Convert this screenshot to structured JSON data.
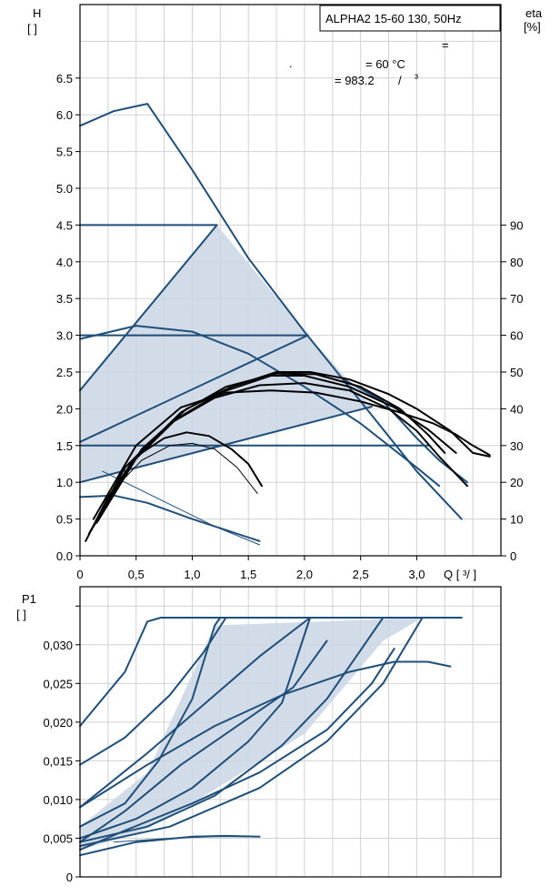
{
  "chart_data": [
    {
      "type": "line",
      "model_box": "ALPHA2 15-60 130, 50Hz",
      "notes": [
        "=",
        ".",
        "= 60 °C",
        "= 983.2",
        "/",
        "³"
      ],
      "y_label": "H",
      "y_unit": "[ ]",
      "y2_label": "eta",
      "y2_unit": "[%]",
      "x_label": "Q [ ³/ ]",
      "xlim": [
        0,
        3.75
      ],
      "ylim": [
        0,
        7.5
      ],
      "y2lim": [
        0,
        150
      ],
      "x_ticks": [
        "0",
        "0,5",
        "1,0",
        "1,5",
        "2,0",
        "2,5",
        "3,0"
      ],
      "x_tick_values": [
        0,
        0.5,
        1.0,
        1.5,
        2.0,
        2.5,
        3.0
      ],
      "y_ticks": [
        "0.0",
        "0.5",
        "1.0",
        "1.5",
        "2.0",
        "2.5",
        "3.0",
        "3.5",
        "4.0",
        "4.5",
        "5.0",
        "5.5",
        "6.0",
        "6.5"
      ],
      "y_tick_values": [
        0,
        0.5,
        1.0,
        1.5,
        2.0,
        2.5,
        3.0,
        3.5,
        4.0,
        4.5,
        5.0,
        5.5,
        6.0,
        6.5
      ],
      "y2_ticks": [
        "0",
        "10",
        "20",
        "30",
        "40",
        "50",
        "60",
        "70",
        "80",
        "90"
      ],
      "y2_tick_values": [
        0,
        10,
        20,
        30,
        40,
        50,
        60,
        70,
        80,
        90
      ],
      "grid": true,
      "area_polygon": [
        [
          0,
          1.0
        ],
        [
          0,
          2.25
        ],
        [
          1.22,
          4.5
        ],
        [
          2.03,
          3.0
        ],
        [
          2.6,
          2.03
        ],
        [
          0,
          1.0
        ]
      ],
      "series": [
        {
          "color": "#1f4e79",
          "width": 2,
          "points": [
            [
              0,
              5.85
            ],
            [
              0.3,
              6.05
            ],
            [
              0.6,
              6.15
            ],
            [
              1.0,
              5.25
            ],
            [
              1.5,
              4.05
            ],
            [
              2.0,
              3.05
            ],
            [
              2.5,
              2.1
            ],
            [
              3.0,
              1.15
            ],
            [
              3.4,
              0.5
            ]
          ]
        },
        {
          "color": "#1f4e79",
          "width": 2,
          "points": [
            [
              0,
              4.5
            ],
            [
              1.22,
              4.5
            ]
          ]
        },
        {
          "color": "#1f4e79",
          "width": 2,
          "points": [
            [
              0,
              3.0
            ],
            [
              2.03,
              3.0
            ]
          ]
        },
        {
          "color": "#1f4e79",
          "width": 2,
          "points": [
            [
              0,
              1.5
            ],
            [
              3.1,
              1.5
            ]
          ]
        },
        {
          "color": "#1f4e79",
          "width": 2,
          "points": [
            [
              0,
              2.25
            ],
            [
              1.22,
              4.5
            ]
          ]
        },
        {
          "color": "#1f4e79",
          "width": 2,
          "points": [
            [
              0,
              1.55
            ],
            [
              2.03,
              3.0
            ]
          ]
        },
        {
          "color": "#1f4e79",
          "width": 2,
          "points": [
            [
              0,
              1.0
            ],
            [
              2.6,
              2.03
            ]
          ]
        },
        {
          "color": "#1f4e79",
          "width": 2,
          "points": [
            [
              0,
              2.95
            ],
            [
              0.5,
              3.13
            ],
            [
              1.0,
              3.05
            ],
            [
              1.5,
              2.75
            ],
            [
              2.0,
              2.3
            ],
            [
              2.5,
              1.8
            ],
            [
              3.0,
              1.2
            ],
            [
              3.2,
              0.95
            ]
          ]
        },
        {
          "color": "#1f4e79",
          "width": 2,
          "points": [
            [
              0,
              0.8
            ],
            [
              0.3,
              0.82
            ],
            [
              0.6,
              0.72
            ],
            [
              1.0,
              0.5
            ],
            [
              1.3,
              0.35
            ],
            [
              1.6,
              0.2
            ]
          ]
        },
        {
          "color": "#1f4e79",
          "width": 1,
          "points": [
            [
              0.2,
              1.15
            ],
            [
              0.8,
              0.7
            ],
            [
              1.2,
              0.4
            ],
            [
              1.6,
              0.15
            ]
          ]
        },
        {
          "color": "#1f4e79",
          "width": 2,
          "points": [
            [
              2.35,
              2.4
            ],
            [
              2.7,
              2.1
            ],
            [
              3.0,
              1.6
            ],
            [
              3.2,
              1.3
            ],
            [
              3.45,
              1.0
            ]
          ]
        },
        {
          "color": "#000000",
          "width": 2,
          "points": [
            [
              0.05,
              0.2
            ],
            [
              0.25,
              0.8
            ],
            [
              0.5,
              1.35
            ],
            [
              0.75,
              1.6
            ],
            [
              0.95,
              1.68
            ],
            [
              1.15,
              1.63
            ],
            [
              1.35,
              1.45
            ],
            [
              1.5,
              1.25
            ],
            [
              1.62,
              0.95
            ]
          ]
        },
        {
          "color": "#000000",
          "width": 1,
          "points": [
            [
              0.1,
              0.35
            ],
            [
              0.3,
              0.9
            ],
            [
              0.55,
              1.3
            ],
            [
              0.8,
              1.5
            ],
            [
              1.0,
              1.53
            ],
            [
              1.2,
              1.45
            ],
            [
              1.4,
              1.2
            ],
            [
              1.58,
              0.85
            ]
          ]
        },
        {
          "color": "#000000",
          "width": 2,
          "points": [
            [
              0.08,
              0.3
            ],
            [
              0.4,
              1.2
            ],
            [
              0.8,
              1.8
            ],
            [
              1.2,
              2.15
            ],
            [
              1.6,
              2.32
            ],
            [
              2.0,
              2.35
            ],
            [
              2.4,
              2.25
            ],
            [
              2.75,
              2.0
            ],
            [
              3.0,
              1.7
            ],
            [
              3.2,
              1.35
            ],
            [
              3.45,
              0.95
            ]
          ]
        },
        {
          "color": "#000000",
          "width": 2,
          "points": [
            [
              0.1,
              0.35
            ],
            [
              0.45,
              1.25
            ],
            [
              0.85,
              1.85
            ],
            [
              1.25,
              2.22
            ],
            [
              1.7,
              2.45
            ],
            [
              2.0,
              2.45
            ],
            [
              2.4,
              2.3
            ],
            [
              2.8,
              2.02
            ],
            [
              3.1,
              1.72
            ],
            [
              3.35,
              1.4
            ]
          ]
        },
        {
          "color": "#000000",
          "width": 2,
          "points": [
            [
              0.12,
              0.4
            ],
            [
              0.5,
              1.35
            ],
            [
              0.9,
              1.95
            ],
            [
              1.3,
              2.3
            ],
            [
              1.75,
              2.48
            ],
            [
              2.1,
              2.47
            ],
            [
              2.5,
              2.3
            ],
            [
              2.85,
              2.0
            ],
            [
              3.1,
              1.65
            ],
            [
              3.25,
              1.4
            ]
          ]
        },
        {
          "color": "#000000",
          "width": 2,
          "points": [
            [
              0.15,
              0.45
            ],
            [
              0.55,
              1.45
            ],
            [
              0.95,
              2.0
            ],
            [
              1.35,
              2.3
            ],
            [
              1.75,
              2.5
            ],
            [
              2.05,
              2.5
            ],
            [
              2.4,
              2.4
            ],
            [
              2.75,
              2.2
            ],
            [
              3.0,
              2.0
            ],
            [
              3.3,
              1.7
            ],
            [
              3.5,
              1.4
            ],
            [
              3.65,
              1.35
            ]
          ]
        },
        {
          "color": "#000000",
          "width": 2,
          "points": [
            [
              0.12,
              0.5
            ],
            [
              0.5,
              1.5
            ],
            [
              0.9,
              2.02
            ],
            [
              1.3,
              2.22
            ],
            [
              1.7,
              2.25
            ],
            [
              2.1,
              2.22
            ],
            [
              2.5,
              2.1
            ],
            [
              2.85,
              1.95
            ],
            [
              3.15,
              1.8
            ],
            [
              3.35,
              1.65
            ],
            [
              3.5,
              1.5
            ],
            [
              3.65,
              1.37
            ]
          ]
        }
      ]
    },
    {
      "type": "line",
      "y_label": "P1",
      "y_unit": "[ ]",
      "xlim": [
        0,
        3.75
      ],
      "ylim": [
        0,
        0.0375
      ],
      "y_ticks": [
        "0",
        "0,005",
        "0,010",
        "0,015",
        "0,020",
        "0,025",
        "0,030"
      ],
      "y_tick_values": [
        0,
        0.005,
        0.01,
        0.015,
        0.02,
        0.025,
        0.03
      ],
      "grid": true,
      "area_polygon": [
        [
          0,
          0.0065
        ],
        [
          0.6,
          0.0135
        ],
        [
          1.2,
          0.0325
        ],
        [
          3.05,
          0.0335
        ],
        [
          2.7,
          0.0305
        ],
        [
          2.0,
          0.0185
        ],
        [
          1.0,
          0.0095
        ],
        [
          0.5,
          0.0055
        ],
        [
          0,
          0.0035
        ]
      ],
      "series": [
        {
          "color": "#1f4e79",
          "width": 2,
          "points": [
            [
              0,
              0.0195
            ],
            [
              0.4,
              0.0265
            ],
            [
              0.6,
              0.033
            ],
            [
              0.72,
              0.0335
            ],
            [
              3.4,
              0.0335
            ]
          ]
        },
        {
          "color": "#1f4e79",
          "width": 2,
          "points": [
            [
              0,
              0.0145
            ],
            [
              0.4,
              0.018
            ],
            [
              0.8,
              0.0235
            ],
            [
              1.1,
              0.029
            ],
            [
              1.3,
              0.0335
            ]
          ]
        },
        {
          "color": "#1f4e79",
          "width": 2,
          "points": [
            [
              0,
              0.009
            ],
            [
              0.6,
              0.016
            ],
            [
              1.2,
              0.0235
            ],
            [
              1.6,
              0.0285
            ],
            [
              2.05,
              0.0335
            ]
          ]
        },
        {
          "color": "#1f4e79",
          "width": 2,
          "points": [
            [
              0,
              0.0065
            ],
            [
              0.4,
              0.0095
            ],
            [
              0.7,
              0.015
            ],
            [
              1.0,
              0.023
            ],
            [
              1.2,
              0.0325
            ],
            [
              1.25,
              0.0335
            ]
          ]
        },
        {
          "color": "#1f4e79",
          "width": 2,
          "points": [
            [
              0,
              0.005
            ],
            [
              0.5,
              0.0075
            ],
            [
              1.0,
              0.0115
            ],
            [
              1.5,
              0.0175
            ],
            [
              1.8,
              0.0225
            ],
            [
              2.05,
              0.0335
            ]
          ]
        },
        {
          "color": "#1f4e79",
          "width": 2,
          "points": [
            [
              0,
              0.0045
            ],
            [
              0.6,
              0.0065
            ],
            [
              1.2,
              0.0105
            ],
            [
              1.8,
              0.017
            ],
            [
              2.2,
              0.023
            ],
            [
              2.7,
              0.0335
            ]
          ]
        },
        {
          "color": "#1f4e79",
          "width": 2,
          "points": [
            [
              0,
              0.004
            ],
            [
              0.8,
              0.0065
            ],
            [
              1.6,
              0.0115
            ],
            [
              2.2,
              0.0175
            ],
            [
              2.7,
              0.025
            ],
            [
              3.05,
              0.0335
            ]
          ]
        },
        {
          "color": "#1f4e79",
          "width": 2,
          "points": [
            [
              0,
              0.0035
            ],
            [
              0.4,
              0.006
            ],
            [
              1.0,
              0.0095
            ],
            [
              1.6,
              0.0135
            ],
            [
              2.2,
              0.019
            ],
            [
              2.6,
              0.025
            ],
            [
              2.8,
              0.0295
            ]
          ]
        },
        {
          "color": "#1f4e79",
          "width": 2,
          "points": [
            [
              0,
              0.009
            ],
            [
              0.6,
              0.0145
            ],
            [
              1.2,
              0.0195
            ],
            [
              1.8,
              0.0235
            ],
            [
              2.4,
              0.0265
            ],
            [
              2.8,
              0.0278
            ],
            [
              3.1,
              0.0278
            ],
            [
              3.3,
              0.0272
            ]
          ]
        },
        {
          "color": "#1f4e79",
          "width": 2,
          "points": [
            [
              0,
              0.0045
            ],
            [
              0.4,
              0.0085
            ],
            [
              0.9,
              0.0145
            ],
            [
              1.4,
              0.0195
            ],
            [
              1.9,
              0.0245
            ],
            [
              2.2,
              0.0305
            ]
          ]
        },
        {
          "color": "#1f4e79",
          "width": 2,
          "points": [
            [
              0,
              0.0028
            ],
            [
              0.5,
              0.0045
            ],
            [
              1.0,
              0.0052
            ],
            [
              1.3,
              0.0053
            ],
            [
              1.6,
              0.0052
            ]
          ]
        },
        {
          "color": "#1f4e79",
          "width": 1,
          "points": [
            [
              0.3,
              0.0045
            ],
            [
              0.8,
              0.005
            ],
            [
              1.2,
              0.0052
            ],
            [
              1.6,
              0.0052
            ]
          ]
        }
      ]
    }
  ]
}
